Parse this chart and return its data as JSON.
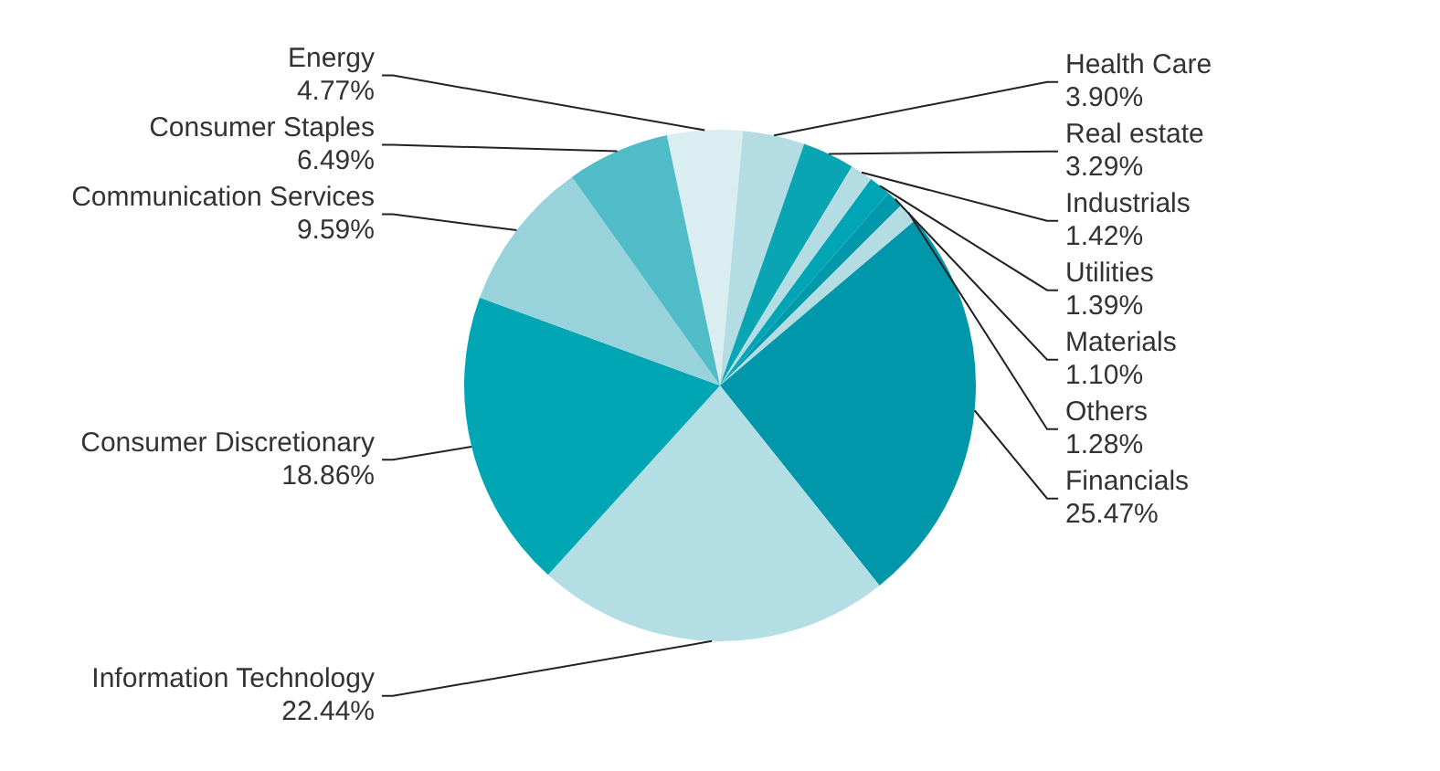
{
  "chart_data": {
    "type": "pie",
    "categories": [
      "Energy",
      "Health Care",
      "Real estate",
      "Industrials",
      "Utilities",
      "Materials",
      "Others",
      "Financials",
      "Information Technology",
      "Consumer Discretionary",
      "Communication Services",
      "Consumer Staples"
    ],
    "values": [
      4.77,
      3.9,
      3.29,
      1.42,
      1.39,
      1.1,
      1.28,
      25.47,
      22.44,
      18.86,
      9.59,
      6.49
    ],
    "value_labels": [
      "4.77%",
      "3.90%",
      "3.29%",
      "1.42%",
      "1.39%",
      "1.10%",
      "1.28%",
      "25.47%",
      "22.44%",
      "18.86%",
      "9.59%",
      "6.49%"
    ],
    "colors": [
      "#daeef2",
      "#b3dde3",
      "#0aa5b3",
      "#b3dde3",
      "#00a5b5",
      "#0099ac",
      "#b3dde3",
      "#0097ab",
      "#b3dfe4",
      "#00a6b4",
      "#98d3db",
      "#4fbcc8"
    ],
    "legend": false
  }
}
